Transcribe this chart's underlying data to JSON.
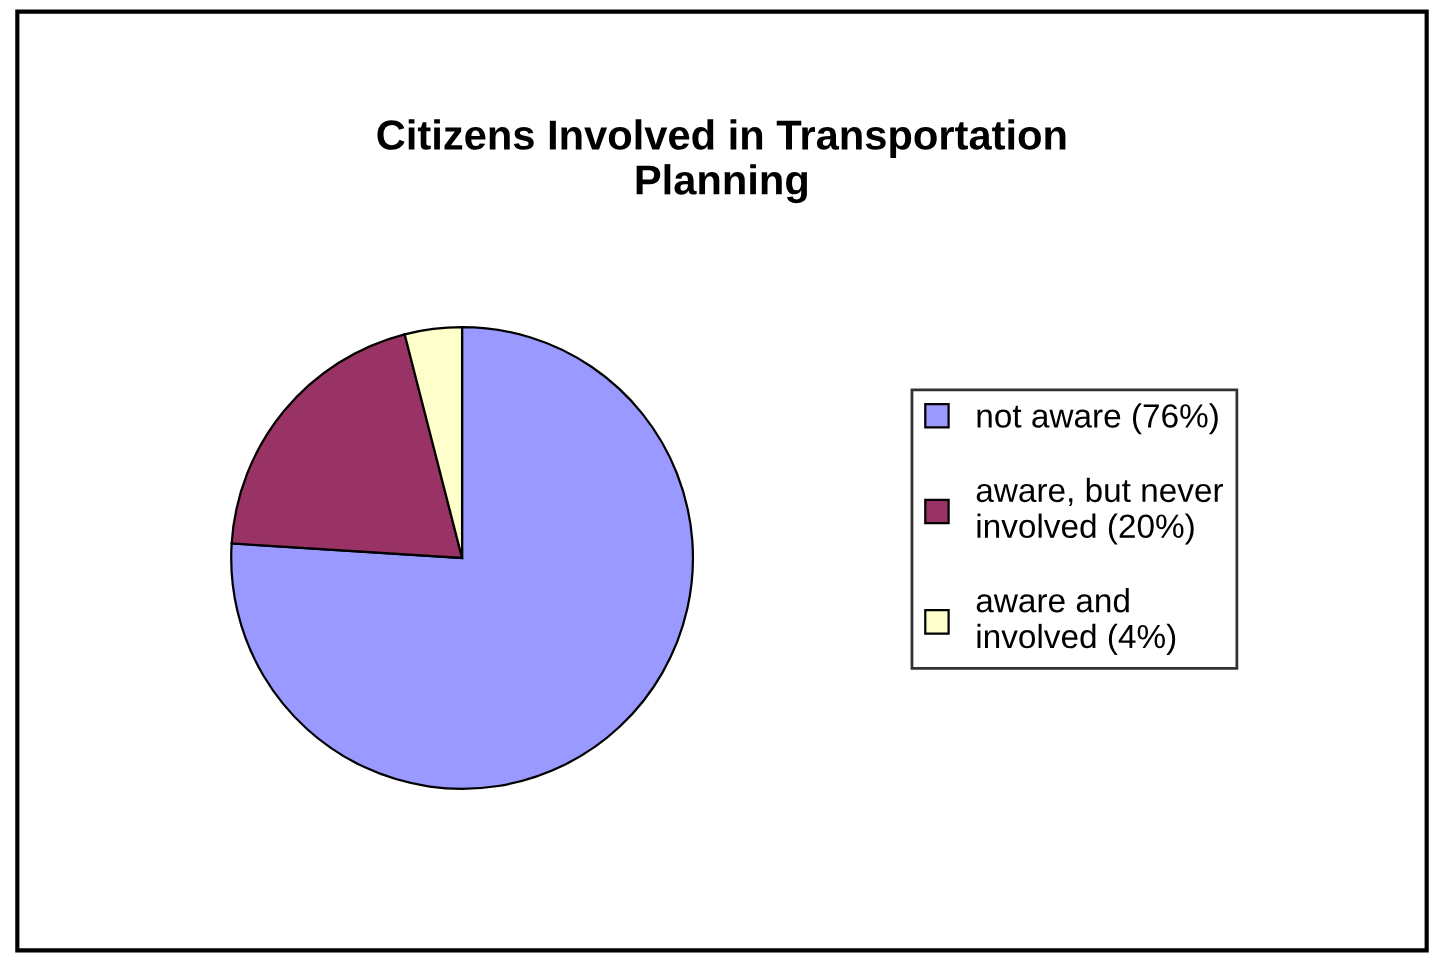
{
  "chart_data": {
    "type": "pie",
    "title": "Citizens Involved in Transportation\nPlanning",
    "categories": [
      "not aware (76%)",
      "aware, but never\ninvolved (20%)",
      "aware and\ninvolved (4%)"
    ],
    "values": [
      76,
      20,
      4
    ],
    "colors": [
      "#9999ff",
      "#993366",
      "#ffffcc"
    ],
    "legend": "right"
  }
}
